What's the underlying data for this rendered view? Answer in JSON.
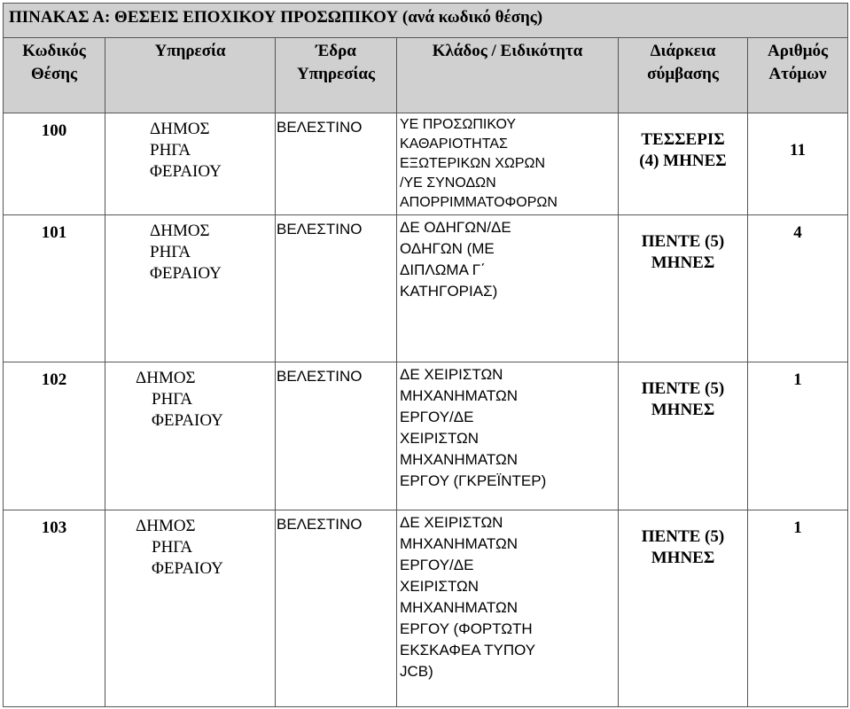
{
  "table": {
    "title_main": "ΠΙΝΑΚΑΣ Α: ΘΕΣΕΙΣ ΕΠΟΧΙΚΟΥ ΠΡΟΣΩΠΙΚΟΥ",
    "title_sub": "(ανά κωδικό θέσης)",
    "headers": [
      [
        "Κωδικός",
        "Θέσης"
      ],
      [
        "Υπηρεσία"
      ],
      [
        "Έδρα",
        "Υπηρεσίας"
      ],
      [
        "Κλάδος / Ειδικότητα"
      ],
      [
        "Διάρκεια",
        "σύμβασης"
      ],
      [
        "Αριθμός",
        "Ατόμων"
      ]
    ],
    "rows": [
      {
        "code": "100",
        "service": [
          "ΔΗΜΟΣ",
          "ΡΗΓΑ",
          "ΦΕΡΑΙΟΥ"
        ],
        "seat": "ΒΕΛΕΣΤΙΝΟ",
        "specialty": [
          "ΥΕ ΠΡΟΣΩΠΙΚΟΥ",
          "ΚΑΘΑΡΙΟΤΗΤΑΣ",
          "ΕΞΩΤΕΡΙΚΩΝ ΧΩΡΩΝ",
          "/ΥΕ ΣΥΝΟΔΩΝ",
          "ΑΠΟΡΡΙΜΜΑΤΟΦΟΡΩΝ"
        ],
        "duration": [
          "ΤΕΣΣΕΡΙΣ",
          "(4)  ΜΗΝΕΣ"
        ],
        "count": "11"
      },
      {
        "code": "101",
        "service": [
          "ΔΗΜΟΣ",
          "ΡΗΓΑ",
          "ΦΕΡΑΙΟΥ"
        ],
        "seat": "ΒΕΛΕΣΤΙΝΟ",
        "specialty": [
          "ΔΕ ΟΔΗΓΩΝ/ΔΕ",
          "ΟΔΗΓΩΝ (ΜΕ",
          "ΔΙΠΛΩΜΑ Γ΄",
          "ΚΑΤΗΓΟΡΙΑΣ)"
        ],
        "duration": [
          "ΠΕΝΤΕ  (5)",
          "ΜΗΝΕΣ"
        ],
        "count": "4"
      },
      {
        "code": "102",
        "service": [
          "ΔΗΜΟΣ",
          "ΡΗΓΑ",
          "ΦΕΡΑΙΟΥ"
        ],
        "seat": "ΒΕΛΕΣΤΙΝΟ",
        "specialty": [
          "ΔΕ ΧΕΙΡΙΣΤΩΝ",
          "ΜΗΧΑΝΗΜΑΤΩΝ",
          "ΕΡΓΟΥ/ΔΕ",
          "ΧΕΙΡΙΣΤΩΝ",
          "ΜΗΧΑΝΗΜΑΤΩΝ",
          "ΕΡΓΟΥ (ΓΚΡΕΪΝΤΕΡ)"
        ],
        "duration": [
          "ΠΕΝΤΕ  (5)",
          "ΜΗΝΕΣ"
        ],
        "count": "1"
      },
      {
        "code": "103",
        "service": [
          "ΔΗΜΟΣ",
          "ΡΗΓΑ",
          "ΦΕΡΑΙΟΥ"
        ],
        "seat": "ΒΕΛΕΣΤΙΝΟ",
        "specialty": [
          "ΔΕ ΧΕΙΡΙΣΤΩΝ",
          "ΜΗΧΑΝΗΜΑΤΩΝ",
          "ΕΡΓΟΥ/ΔΕ",
          "ΧΕΙΡΙΣΤΩΝ",
          "ΜΗΧΑΝΗΜΑΤΩΝ",
          "ΕΡΓΟΥ (ΦΟΡΤΩΤΗ",
          "ΕΚΣΚΑΦΕΑ  ΤΥΠΟΥ",
          "JCB)"
        ],
        "duration": [
          "ΠΕΝΤΕ  (5)",
          "ΜΗΝΕΣ"
        ],
        "count": "1"
      }
    ]
  }
}
